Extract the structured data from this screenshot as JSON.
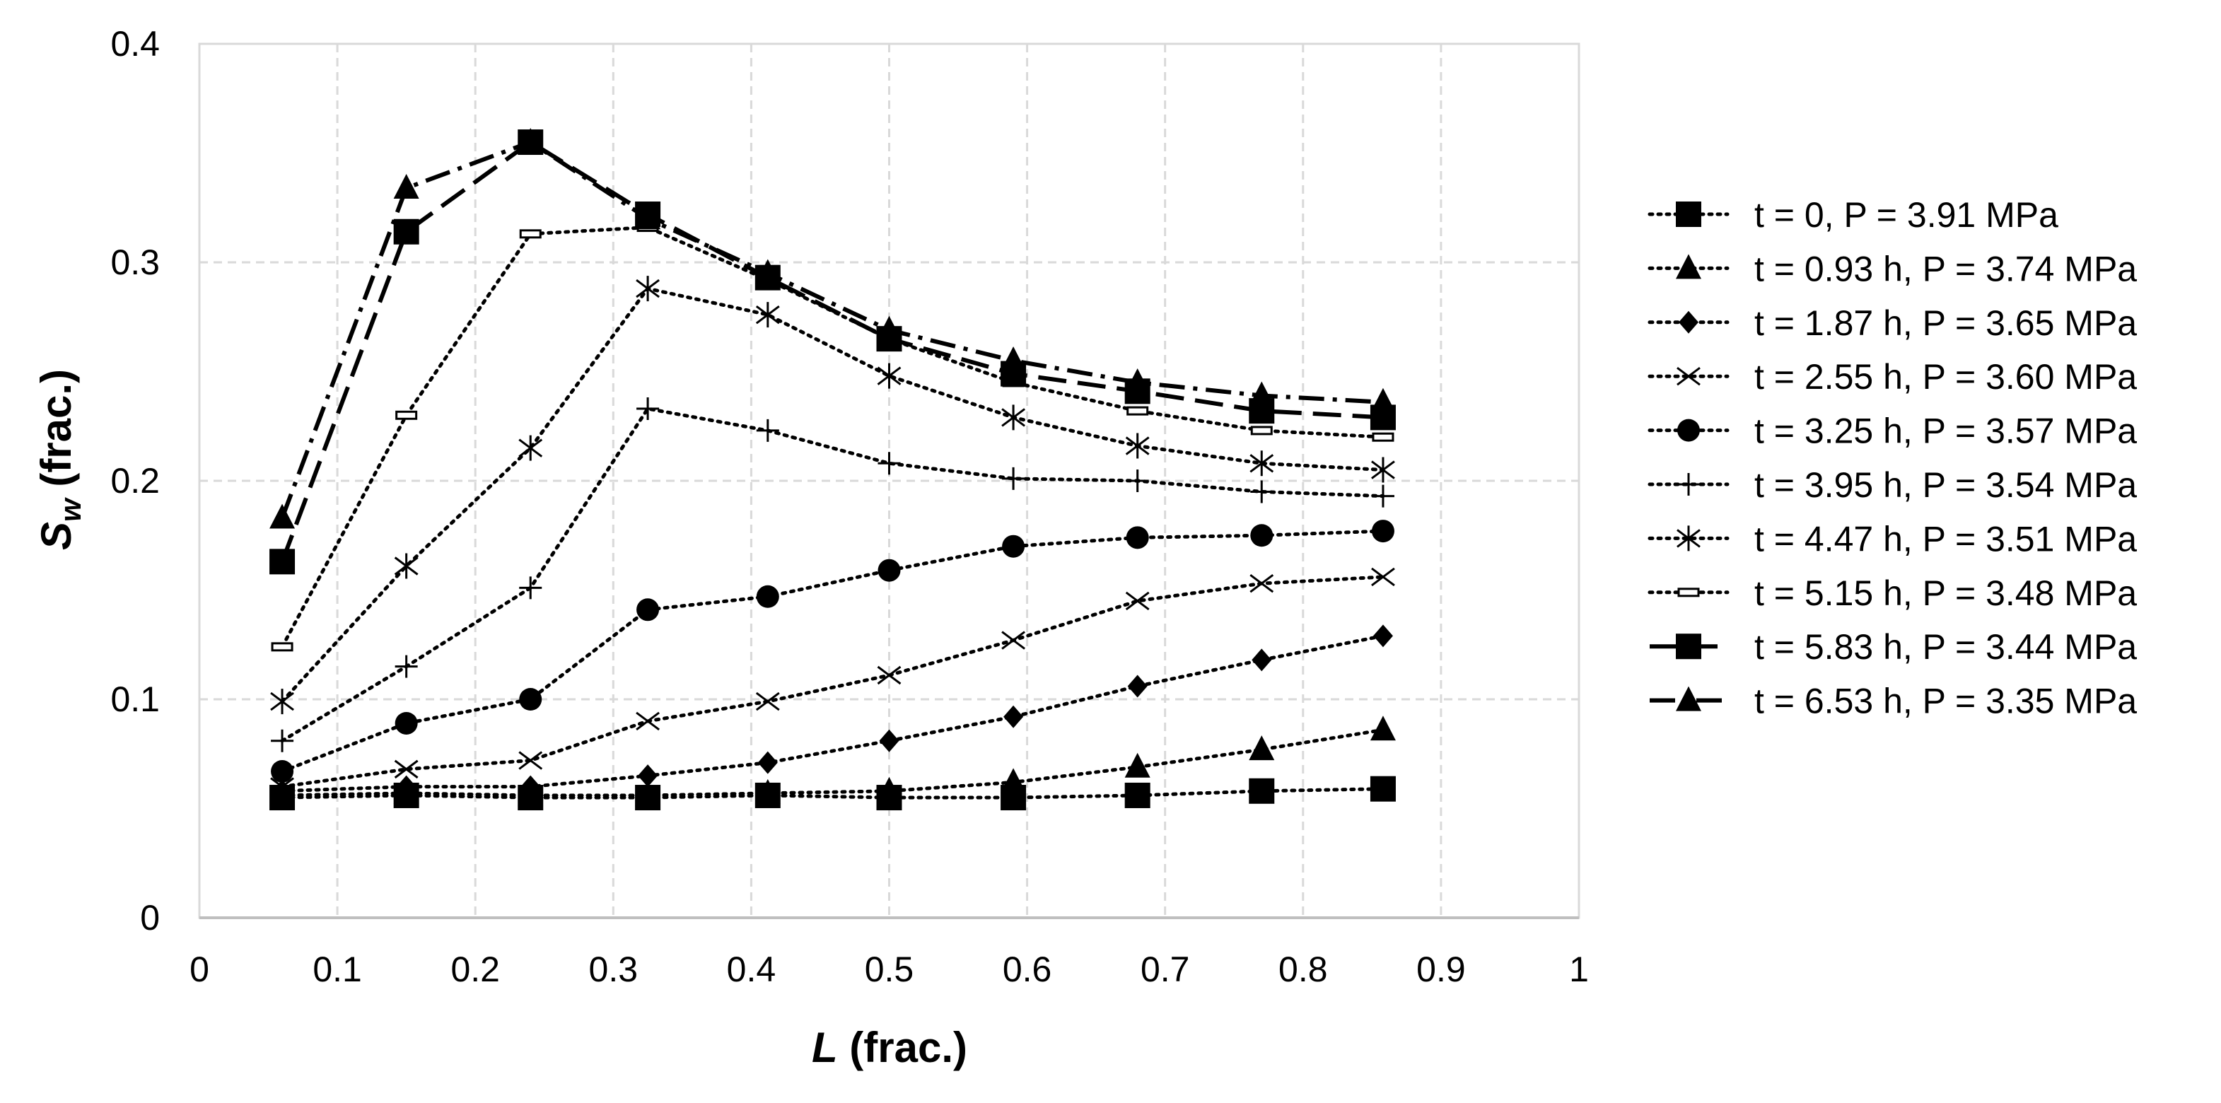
{
  "chart_data": {
    "type": "line",
    "title": "",
    "xlabel": {
      "main": "L",
      "rest": " (frac.)"
    },
    "ylabel": {
      "main": "S",
      "sub": "w",
      "rest": " (frac.)"
    },
    "xlim": [
      0,
      1
    ],
    "ylim": [
      0,
      0.4
    ],
    "x_ticks": [
      0,
      0.1,
      0.2,
      0.3,
      0.4,
      0.5,
      0.6,
      0.7,
      0.8,
      0.9,
      1
    ],
    "x_tick_labels": [
      "0",
      "0.1",
      "0.2",
      "0.3",
      "0.4",
      "0.5",
      "0.6",
      "0.7",
      "0.8",
      "0.9",
      "1"
    ],
    "y_ticks": [
      0,
      0.1,
      0.2,
      0.3,
      0.4
    ],
    "y_tick_labels": [
      "0",
      "0.1",
      "0.2",
      "0.3",
      "0.4"
    ],
    "grid": true,
    "legend_position": "right",
    "x": [
      0.06,
      0.15,
      0.24,
      0.325,
      0.412,
      0.5,
      0.59,
      0.68,
      0.77,
      0.858
    ],
    "series": [
      {
        "name": "t = 0, P = 3.91 MPa",
        "marker": "square",
        "dash": "dotted",
        "values": [
          0.055,
          0.056,
          0.055,
          0.055,
          0.056,
          0.055,
          0.055,
          0.056,
          0.058,
          0.059
        ]
      },
      {
        "name": "t = 0.93 h, P = 3.74 MPa",
        "marker": "triangle",
        "dash": "dotted",
        "values": [
          0.056,
          0.057,
          0.056,
          0.056,
          0.057,
          0.058,
          0.062,
          0.069,
          0.077,
          0.086
        ]
      },
      {
        "name": "t = 1.87 h, P = 3.65 MPa",
        "marker": "diamond",
        "dash": "dotted",
        "values": [
          0.058,
          0.06,
          0.06,
          0.065,
          0.071,
          0.081,
          0.092,
          0.106,
          0.118,
          0.129
        ]
      },
      {
        "name": "t = 2.55 h, P = 3.60 MPa",
        "marker": "x",
        "dash": "dotted",
        "values": [
          0.06,
          0.068,
          0.072,
          0.09,
          0.099,
          0.111,
          0.127,
          0.145,
          0.153,
          0.156
        ]
      },
      {
        "name": "t = 3.25 h, P = 3.57 MPa",
        "marker": "circle",
        "dash": "dotted",
        "values": [
          0.067,
          0.089,
          0.1,
          0.141,
          0.147,
          0.159,
          0.17,
          0.174,
          0.175,
          0.177
        ]
      },
      {
        "name": "t = 3.95 h, P = 3.54 MPa",
        "marker": "plus",
        "dash": "dotted",
        "values": [
          0.081,
          0.115,
          0.151,
          0.233,
          0.223,
          0.208,
          0.201,
          0.2,
          0.195,
          0.193
        ]
      },
      {
        "name": "t = 4.47 h, P = 3.51 MPa",
        "marker": "asterisk",
        "dash": "dotted",
        "values": [
          0.099,
          0.161,
          0.215,
          0.288,
          0.276,
          0.248,
          0.229,
          0.216,
          0.208,
          0.205
        ]
      },
      {
        "name": "t = 5.15 h, P = 3.48 MPa",
        "marker": "hbar",
        "dash": "dotted",
        "values": [
          0.124,
          0.23,
          0.313,
          0.316,
          0.292,
          0.265,
          0.245,
          0.232,
          0.223,
          0.22
        ]
      },
      {
        "name": "t = 5.83 h, P = 3.44 MPa",
        "marker": "square",
        "dash": "dashed",
        "values": [
          0.163,
          0.314,
          0.355,
          0.322,
          0.293,
          0.265,
          0.249,
          0.241,
          0.232,
          0.229
        ]
      },
      {
        "name": "t = 6.53 h, P = 3.35 MPa",
        "marker": "triangle",
        "dash": "dashdot",
        "values": [
          0.183,
          0.334,
          0.355,
          0.32,
          0.295,
          0.269,
          0.255,
          0.245,
          0.239,
          0.236
        ]
      }
    ]
  }
}
